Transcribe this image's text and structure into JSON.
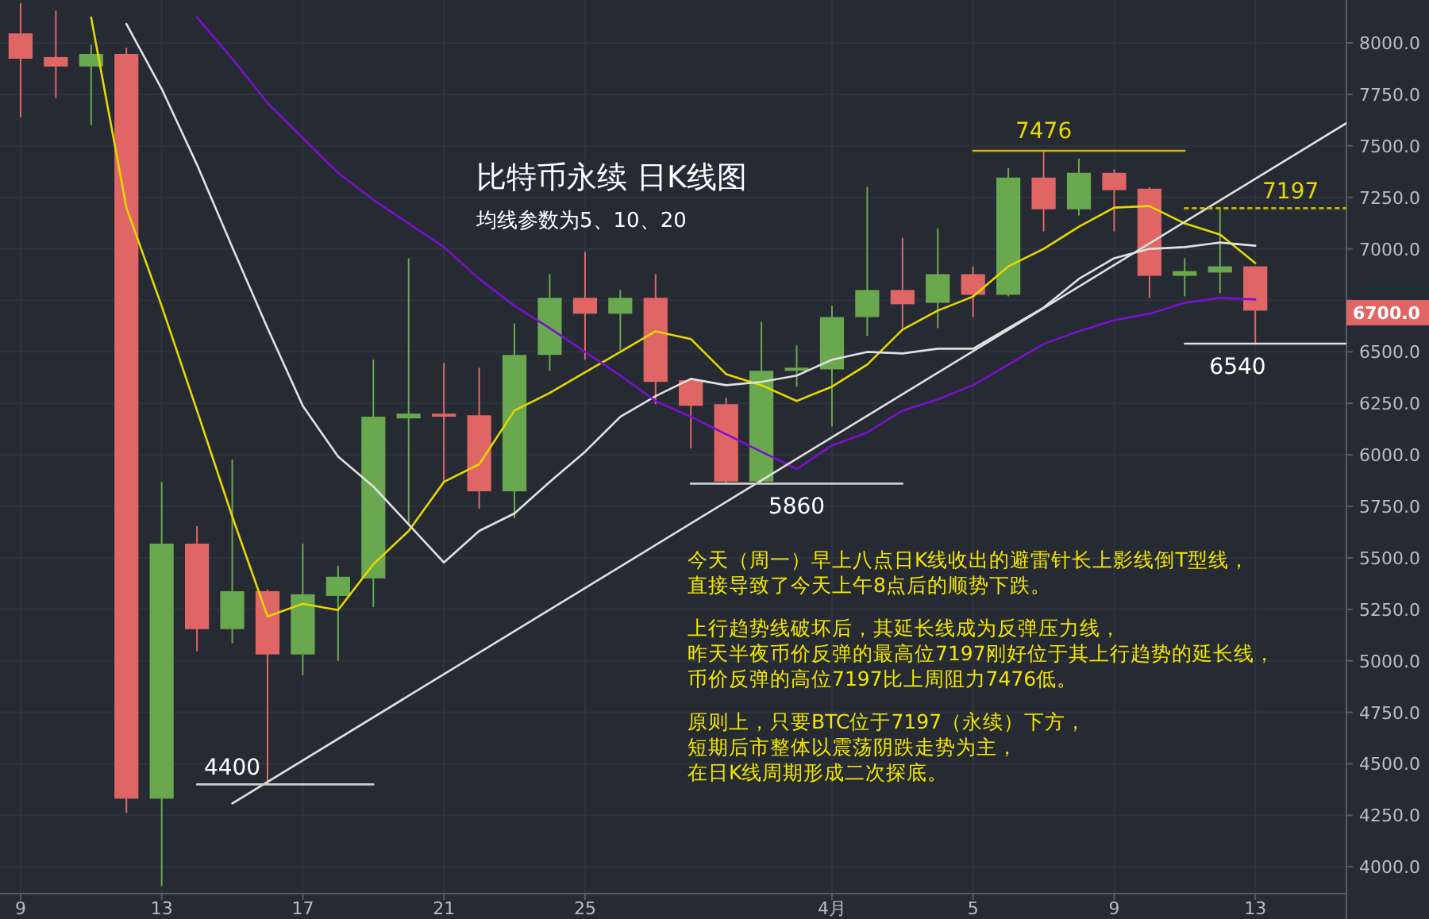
{
  "chart_data": {
    "type": "candlestick",
    "title": "比特币永续 日K线图",
    "subtitle": "均线参数为5、10、20",
    "x": [
      "--03-09",
      "--03-10",
      "--03-11",
      "--03-12",
      "--03-13",
      "--03-14",
      "--03-15",
      "--03-16",
      "--03-17",
      "--03-18",
      "--03-19",
      "--03-20",
      "--03-21",
      "--03-22",
      "--03-23",
      "--03-24",
      "--03-25",
      "--03-26",
      "--03-27",
      "--03-28",
      "--03-29",
      "--03-30",
      "--03-31",
      "--04-01",
      "--04-02",
      "--04-03",
      "--04-04",
      "--04-05",
      "--04-06",
      "--04-07",
      "--04-08",
      "--04-09",
      "--04-10",
      "--04-11",
      "--04-12",
      "--04-13"
    ],
    "ohlc": [
      [
        8046,
        8192,
        7638,
        7923
      ],
      [
        7931,
        8156,
        7731,
        7885
      ],
      [
        7885,
        7992,
        7600,
        7946
      ],
      [
        7946,
        7977,
        4262,
        4331
      ],
      [
        4331,
        5869,
        3908,
        5569
      ],
      [
        5569,
        5654,
        5046,
        5154
      ],
      [
        5154,
        5977,
        5085,
        5338
      ],
      [
        5338,
        5346,
        4400,
        5031
      ],
      [
        5031,
        5569,
        4931,
        5323
      ],
      [
        5315,
        5462,
        5000,
        5408
      ],
      [
        5400,
        6462,
        5262,
        6185
      ],
      [
        6177,
        6954,
        5662,
        6200
      ],
      [
        6200,
        6446,
        5869,
        6185
      ],
      [
        6192,
        6423,
        5738,
        5823
      ],
      [
        5823,
        6638,
        5692,
        6485
      ],
      [
        6485,
        6877,
        6408,
        6762
      ],
      [
        6762,
        6985,
        6462,
        6685
      ],
      [
        6685,
        6800,
        6508,
        6762
      ],
      [
        6762,
        6877,
        6246,
        6354
      ],
      [
        6362,
        6362,
        6031,
        6238
      ],
      [
        6246,
        6277,
        5860,
        5870
      ],
      [
        5870,
        6646,
        5860,
        6408
      ],
      [
        6408,
        6531,
        6331,
        6423
      ],
      [
        6415,
        6723,
        6138,
        6669
      ],
      [
        6669,
        7300,
        6577,
        6800
      ],
      [
        6800,
        7054,
        6615,
        6731
      ],
      [
        6738,
        7100,
        6615,
        6877
      ],
      [
        6877,
        6915,
        6669,
        6777
      ],
      [
        6777,
        7392,
        6769,
        7346
      ],
      [
        7346,
        7476,
        7085,
        7192
      ],
      [
        7192,
        7438,
        7162,
        7369
      ],
      [
        7369,
        7385,
        7085,
        7285
      ],
      [
        7292,
        7300,
        6762,
        6869
      ],
      [
        6869,
        6954,
        6769,
        6892
      ],
      [
        6885,
        7197,
        6785,
        6915
      ],
      [
        6915,
        6915,
        6540,
        6700
      ]
    ],
    "colors": [
      "#e06666",
      "#e06666",
      "#6aa84f",
      "#e06666",
      "#6aa84f",
      "#e06666",
      "#6aa84f",
      "#e06666",
      "#6aa84f",
      "#6aa84f",
      "#6aa84f",
      "#6aa84f",
      "#e06666",
      "#e06666",
      "#6aa84f",
      "#6aa84f",
      "#e06666",
      "#6aa84f",
      "#e06666",
      "#e06666",
      "#e06666",
      "#6aa84f",
      "#6aa84f",
      "#6aa84f",
      "#6aa84f",
      "#e06666",
      "#6aa84f",
      "#e06666",
      "#6aa84f",
      "#e06666",
      "#6aa84f",
      "#e06666",
      "#e06666",
      "#6aa84f",
      "#6aa84f",
      "#e06666"
    ],
    "series": [
      {
        "type": "line",
        "color": "#e6d800",
        "values": [
          null,
          null,
          8123,
          7200,
          6723,
          6215,
          5700,
          5215,
          5277,
          5246,
          5469,
          5631,
          5869,
          5954,
          6215,
          6300,
          6400,
          6500,
          6600,
          6562,
          6392,
          6338,
          6262,
          6331,
          6438,
          6608,
          6700,
          6769,
          6915,
          7000,
          7108,
          7200,
          7208,
          7123,
          7069,
          6931
        ]
      },
      {
        "type": "line",
        "color": "#e0e0e0",
        "values": [
          null,
          null,
          null,
          8092,
          7777,
          7408,
          7008,
          6615,
          6238,
          5992,
          5846,
          5662,
          5477,
          5631,
          5715,
          5869,
          6015,
          6185,
          6285,
          6369,
          6338,
          6354,
          6385,
          6462,
          6500,
          6492,
          6515,
          6515,
          6615,
          6715,
          6854,
          6954,
          7000,
          7008,
          7031,
          7015
        ]
      },
      {
        "type": "line",
        "color": "#7b10d0",
        "values": [
          null,
          null,
          null,
          null,
          null,
          8123,
          7923,
          7708,
          7538,
          7369,
          7238,
          7123,
          7008,
          6854,
          6723,
          6615,
          6500,
          6385,
          6262,
          6185,
          6100,
          6015,
          5931,
          6046,
          6108,
          6215,
          6269,
          6338,
          6438,
          6538,
          6600,
          6654,
          6685,
          6738,
          6762,
          6754
        ]
      },
      {
        "type": "line",
        "color": "#e0e0e0",
        "x": [
          "--03-15",
          "--04-15T14:00"
        ],
        "values": [
          4308,
          7610
        ]
      },
      {
        "type": "line",
        "color": "#cccccc",
        "x": [
          "--03-14",
          "--03-19"
        ],
        "values": [
          4400,
          4400
        ]
      },
      {
        "type": "line",
        "color": "#cccccc",
        "x": [
          "--03-28",
          "--04-03"
        ],
        "values": [
          5860,
          5860
        ]
      },
      {
        "type": "line",
        "color": "#c8b800",
        "x": [
          "--04-05",
          "--04-11"
        ],
        "values": [
          7476,
          7476
        ]
      },
      {
        "type": "line",
        "color": "#c8b800",
        "line_style": "dotted",
        "x": [
          "--04-11",
          "--04-15T14:00"
        ],
        "values": [
          7197,
          7197
        ]
      },
      {
        "type": "line",
        "color": "#e0e0e0",
        "x": [
          "--04-11",
          "--04-15T14:00"
        ],
        "values": [
          6540,
          6540
        ]
      }
    ],
    "annotations": [
      {
        "text": "4400",
        "x": "--03-15",
        "y": 4400
      },
      {
        "text": "5860",
        "x": "--03-31",
        "y": 5860
      },
      {
        "text": "7476",
        "x": "--04-07",
        "y": 7476
      },
      {
        "text": "7197",
        "x": "--04-14",
        "y": 7197
      },
      {
        "text": "6540",
        "x": "--04-12T12:00",
        "y": 6540
      },
      "6700.0",
      "今天（周一）早上八点日K线收出的避雷针长上影线倒T型线，",
      "直接导致了今天上午8点后的顺势下跌。",
      "上行趋势线破坏后，其延长线成为反弹压力线，",
      "昨天半夜币价反弹的最高位7197刚好位于其上行趋势的延长线，",
      "币价反弹的高位7197比上周阻力7476低。",
      "原则上，只要BTC位于7197（永续）下方，",
      "短期后市整体以震荡阴跌走势为主，",
      "在日K线周期形成二次探底。"
    ],
    "xlim": [
      "--03-08T10:00",
      "--04-15T14:00"
    ],
    "xticks": [
      {
        "value": "--03-09",
        "label": "9"
      },
      {
        "value": "--03-13",
        "label": "13"
      },
      {
        "value": "--03-17",
        "label": "17"
      },
      {
        "value": "--03-21",
        "label": "21"
      },
      {
        "value": "--03-25",
        "label": "25"
      },
      {
        "value": "--04-01",
        "label": "4月"
      },
      {
        "value": "--04-05",
        "label": "5"
      },
      {
        "value": "--04-09",
        "label": "9"
      },
      {
        "value": "--04-13",
        "label": "13"
      }
    ],
    "ylim": [
      3870,
      8208
    ],
    "yticks": [
      {
        "value": 4000,
        "label": "4000.0"
      },
      {
        "value": 4250,
        "label": "4250.0"
      },
      {
        "value": 4500,
        "label": "4500.0"
      },
      {
        "value": 4750,
        "label": "4750.0"
      },
      {
        "value": 5000,
        "label": "5000.0"
      },
      {
        "value": 5250,
        "label": "5250.0"
      },
      {
        "value": 5500,
        "label": "5500.0"
      },
      {
        "value": 5750,
        "label": "5750.0"
      },
      {
        "value": 6000,
        "label": "6000.0"
      },
      {
        "value": 6250,
        "label": "6250.0"
      },
      {
        "value": 6500,
        "label": "6500.0"
      },
      {
        "value": 6750,
        "label": null
      },
      {
        "value": 7000,
        "label": "7000.0"
      },
      {
        "value": 7250,
        "label": "7250.0"
      },
      {
        "value": 7500,
        "label": "7500.0"
      },
      {
        "value": 7750,
        "label": "7750.0"
      },
      {
        "value": 8000,
        "label": "8000.0"
      }
    ],
    "grid": true
  }
}
